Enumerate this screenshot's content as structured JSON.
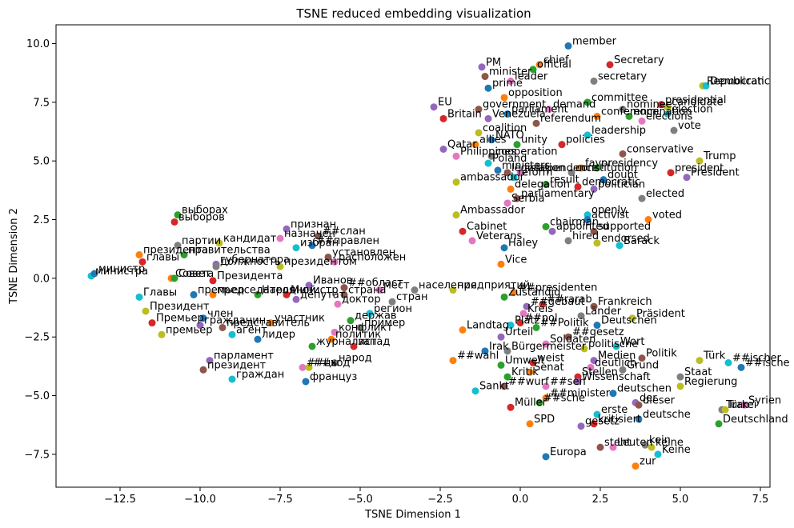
{
  "chart_data": {
    "type": "scatter",
    "title": "TSNE reduced embedding visualization",
    "xlabel": "TSNE Dimension 1",
    "ylabel": "TSNE Dimension 2",
    "xlim": [
      -14.5,
      7.8
    ],
    "ylim": [
      -8.9,
      10.8
    ],
    "xticks": [
      -12.5,
      -10.0,
      -7.5,
      -5.0,
      -2.5,
      0.0,
      2.5,
      5.0,
      7.5
    ],
    "xtick_labels": [
      "−12.5",
      "−10.0",
      "−7.5",
      "−5.0",
      "−2.5",
      "0.0",
      "2.5",
      "5.0",
      "7.5"
    ],
    "yticks": [
      -7.5,
      -5.0,
      -2.5,
      0.0,
      2.5,
      5.0,
      7.5,
      10.0
    ],
    "ytick_labels": [
      "−7.5",
      "−5.0",
      "−2.5",
      "0.0",
      "2.5",
      "5.0",
      "7.5",
      "10.0"
    ],
    "grid": false,
    "legend": "none",
    "palette": [
      "#1f77b4",
      "#ff7f0e",
      "#2ca02c",
      "#d62728",
      "#9467bd",
      "#8c564b",
      "#e377c2",
      "#7f7f7f",
      "#bcbd22",
      "#17becf"
    ],
    "points": [
      {
        "label": "member",
        "x": 1.5,
        "y": 9.9
      },
      {
        "label": "chief",
        "x": 0.6,
        "y": 9.1
      },
      {
        "label": "official",
        "x": 0.4,
        "y": 8.9
      },
      {
        "label": "Secretary",
        "x": 2.8,
        "y": 9.1
      },
      {
        "label": "PM",
        "x": -1.2,
        "y": 9.0
      },
      {
        "label": "minister",
        "x": -1.1,
        "y": 8.6
      },
      {
        "label": "leader",
        "x": -0.3,
        "y": 8.4
      },
      {
        "label": "secretary",
        "x": 2.3,
        "y": 8.4
      },
      {
        "label": "Republican",
        "x": 5.7,
        "y": 8.2
      },
      {
        "label": "Democratic",
        "x": 5.8,
        "y": 8.2
      },
      {
        "label": "prime",
        "x": -1.0,
        "y": 8.1
      },
      {
        "label": "opposition",
        "x": -0.5,
        "y": 7.7
      },
      {
        "label": "committee",
        "x": 2.1,
        "y": 7.5
      },
      {
        "label": "presidential",
        "x": 4.4,
        "y": 7.4
      },
      {
        "label": "EU",
        "x": -2.7,
        "y": 7.3
      },
      {
        "label": "government",
        "x": -1.3,
        "y": 7.2
      },
      {
        "label": "demand",
        "x": 0.9,
        "y": 7.2
      },
      {
        "label": "nominee",
        "x": 3.2,
        "y": 7.2
      },
      {
        "label": "candidate",
        "x": 4.6,
        "y": 7.3
      },
      {
        "label": "election",
        "x": 4.6,
        "y": 7.0
      },
      {
        "label": "parliament",
        "x": -0.4,
        "y": 7.0
      },
      {
        "label": "conference",
        "x": 2.4,
        "y": 6.9
      },
      {
        "label": "nomination",
        "x": 3.4,
        "y": 6.9
      },
      {
        "label": "Britain",
        "x": -2.4,
        "y": 6.8
      },
      {
        "label": "Venezuela",
        "x": -1.0,
        "y": 6.8
      },
      {
        "label": "referendum",
        "x": 0.5,
        "y": 6.6
      },
      {
        "label": "elections",
        "x": 3.8,
        "y": 6.7
      },
      {
        "label": "vote",
        "x": 4.8,
        "y": 6.3
      },
      {
        "label": "coalition",
        "x": -1.3,
        "y": 6.2
      },
      {
        "label": "leadership",
        "x": 2.1,
        "y": 6.1
      },
      {
        "label": "NATO",
        "x": -0.9,
        "y": 5.9
      },
      {
        "label": "allies",
        "x": -1.4,
        "y": 5.7
      },
      {
        "label": "unity",
        "x": -0.1,
        "y": 5.7
      },
      {
        "label": "policies",
        "x": 1.3,
        "y": 5.7
      },
      {
        "label": "Qatar",
        "x": -2.4,
        "y": 5.5
      },
      {
        "label": "conservative",
        "x": 3.2,
        "y": 5.3
      },
      {
        "label": "Philippines",
        "x": -2.0,
        "y": 5.2
      },
      {
        "label": "cooperation",
        "x": -0.9,
        "y": 5.2
      },
      {
        "label": "Trump",
        "x": 5.6,
        "y": 5.0
      },
      {
        "label": "Poland",
        "x": -1.0,
        "y": 4.9
      },
      {
        "label": "ministers",
        "x": -0.7,
        "y": 4.6
      },
      {
        "label": "favor",
        "x": 1.9,
        "y": 4.7
      },
      {
        "label": "presidency",
        "x": 2.4,
        "y": 4.7
      },
      {
        "label": "president",
        "x": 4.7,
        "y": 4.5
      },
      {
        "label": "President",
        "x": 5.2,
        "y": 4.3
      },
      {
        "label": "legislation",
        "x": -0.4,
        "y": 4.5
      },
      {
        "label": "independence",
        "x": 0.0,
        "y": 4.5
      },
      {
        "label": "constitution",
        "x": 1.6,
        "y": 4.5
      },
      {
        "label": "ambassador",
        "x": -2.0,
        "y": 4.1
      },
      {
        "label": "reform",
        "x": -0.2,
        "y": 4.3
      },
      {
        "label": "doubt",
        "x": 2.6,
        "y": 4.2
      },
      {
        "label": "delegation",
        "x": -0.3,
        "y": 3.8
      },
      {
        "label": "result",
        "x": 0.8,
        "y": 4.0
      },
      {
        "label": "democratic",
        "x": 1.8,
        "y": 3.9
      },
      {
        "label": "politician",
        "x": 2.3,
        "y": 3.8
      },
      {
        "label": "parliamentary",
        "x": -0.1,
        "y": 3.4
      },
      {
        "label": "Serbia",
        "x": -0.4,
        "y": 3.2
      },
      {
        "label": "elected",
        "x": 3.8,
        "y": 3.4
      },
      {
        "label": "Ambassador",
        "x": -2.0,
        "y": 2.7
      },
      {
        "label": "openly",
        "x": 2.1,
        "y": 2.7
      },
      {
        "label": "activist",
        "x": 2.1,
        "y": 2.5
      },
      {
        "label": "voted",
        "x": 4.0,
        "y": 2.5
      },
      {
        "label": "chairman",
        "x": 0.8,
        "y": 2.2
      },
      {
        "label": "Cabinet",
        "x": -1.8,
        "y": 2.0
      },
      {
        "label": "appointed",
        "x": 1.0,
        "y": 2.0
      },
      {
        "label": "supported",
        "x": 2.3,
        "y": 2.0
      },
      {
        "label": "Veterans",
        "x": -1.5,
        "y": 1.6
      },
      {
        "label": "hired",
        "x": 1.5,
        "y": 1.6
      },
      {
        "label": "endorsed",
        "x": 2.4,
        "y": 1.5
      },
      {
        "label": "Barack",
        "x": 3.1,
        "y": 1.4
      },
      {
        "label": "Haley",
        "x": -0.5,
        "y": 1.3
      },
      {
        "label": "Vice",
        "x": -0.6,
        "y": 0.6
      },
      {
        "label": "выборах",
        "x": -10.7,
        "y": 2.7
      },
      {
        "label": "выборов",
        "x": -10.8,
        "y": 2.4
      },
      {
        "label": "признан",
        "x": -7.3,
        "y": 2.1
      },
      {
        "label": "##слан",
        "x": -6.3,
        "y": 1.8
      },
      {
        "label": "назначен",
        "x": -7.5,
        "y": 1.7
      },
      {
        "label": "партии",
        "x": -10.7,
        "y": 1.4
      },
      {
        "label": "кандидат",
        "x": -9.4,
        "y": 1.5
      },
      {
        "label": "избран",
        "x": -7.0,
        "y": 1.3
      },
      {
        "label": "##правлен",
        "x": -6.5,
        "y": 1.4
      },
      {
        "label": "президента",
        "x": -11.9,
        "y": 1.0
      },
      {
        "label": "правительства",
        "x": -10.5,
        "y": 1.0
      },
      {
        "label": "главы",
        "x": -11.8,
        "y": 0.7
      },
      {
        "label": "губернатора",
        "x": -9.5,
        "y": 0.6
      },
      {
        "label": "установлен",
        "x": -6.0,
        "y": 0.9
      },
      {
        "label": "расположен",
        "x": -5.8,
        "y": 0.7
      },
      {
        "label": "должность",
        "x": -9.5,
        "y": 0.5
      },
      {
        "label": "президентом",
        "x": -7.5,
        "y": 0.5
      },
      {
        "label": "министра",
        "x": -13.4,
        "y": 0.1
      },
      {
        "label": "министр",
        "x": -13.3,
        "y": 0.2
      },
      {
        "label": "Совета",
        "x": -10.9,
        "y": 0.0
      },
      {
        "label": "Совет",
        "x": -10.8,
        "y": 0.0
      },
      {
        "label": "Президента",
        "x": -9.6,
        "y": -0.1
      },
      {
        "label": "Иванов",
        "x": -6.6,
        "y": -0.3
      },
      {
        "label": "##област",
        "x": -5.5,
        "y": -0.4
      },
      {
        "label": "мест",
        "x": -4.4,
        "y": -0.5
      },
      {
        "label": "населения",
        "x": -3.3,
        "y": -0.5
      },
      {
        "label": "предприятий",
        "x": -2.1,
        "y": -0.5
      },
      {
        "label": "Главы",
        "x": -11.9,
        "y": -0.8
      },
      {
        "label": "премьер",
        "x": -10.2,
        "y": -0.7
      },
      {
        "label": "председателя",
        "x": -9.6,
        "y": -0.7
      },
      {
        "label": "Народной",
        "x": -8.2,
        "y": -0.7
      },
      {
        "label": "Министр",
        "x": -7.3,
        "y": -0.7
      },
      {
        "label": "депутат",
        "x": -7.0,
        "y": -0.9
      },
      {
        "label": "страна",
        "x": -5.5,
        "y": -0.7
      },
      {
        "label": "доктор",
        "x": -5.7,
        "y": -1.1
      },
      {
        "label": "стран",
        "x": -4.0,
        "y": -1.0
      },
      {
        "label": "Президент",
        "x": -11.7,
        "y": -1.4
      },
      {
        "label": "регион",
        "x": -4.7,
        "y": -1.5
      },
      {
        "label": "член",
        "x": -9.9,
        "y": -1.7
      },
      {
        "label": "участник",
        "x": -7.8,
        "y": -1.9
      },
      {
        "label": "держав",
        "x": -5.3,
        "y": -1.8
      },
      {
        "label": "Премьер",
        "x": -11.5,
        "y": -1.9
      },
      {
        "label": "гражданин",
        "x": -10.0,
        "y": -2.0
      },
      {
        "label": "представитель",
        "x": -9.3,
        "y": -2.1
      },
      {
        "label": "конфликт",
        "x": -5.8,
        "y": -2.3
      },
      {
        "label": "пример",
        "x": -5.0,
        "y": -2.1
      },
      {
        "label": "премьер",
        "x": -11.2,
        "y": -2.4
      },
      {
        "label": "агент",
        "x": -9.0,
        "y": -2.4
      },
      {
        "label": "лидер",
        "x": -8.2,
        "y": -2.6
      },
      {
        "label": "политик",
        "x": -5.9,
        "y": -2.6
      },
      {
        "label": "журналист",
        "x": -6.5,
        "y": -2.9
      },
      {
        "label": "запад",
        "x": -5.2,
        "y": -2.9
      },
      {
        "label": "парламент",
        "x": -9.7,
        "y": -3.5
      },
      {
        "label": "президент",
        "x": -9.9,
        "y": -3.9
      },
      {
        "label": "##цы",
        "x": -6.8,
        "y": -3.8
      },
      {
        "label": "народ",
        "x": -5.8,
        "y": -3.6
      },
      {
        "label": "##ход",
        "x": -6.6,
        "y": -3.8
      },
      {
        "label": "граждан",
        "x": -9.0,
        "y": -4.3
      },
      {
        "label": "француз",
        "x": -6.7,
        "y": -4.4
      },
      {
        "label": "##presidenten",
        "x": -0.2,
        "y": -0.6
      },
      {
        "label": "Zuständig",
        "x": -0.5,
        "y": -0.8
      },
      {
        "label": "##rarab",
        "x": 0.7,
        "y": -1.1
      },
      {
        "label": "##gebaut",
        "x": 0.2,
        "y": -1.2
      },
      {
        "label": "Frankreich",
        "x": 2.3,
        "y": -1.2
      },
      {
        "label": "Kreis",
        "x": 0.1,
        "y": -1.5
      },
      {
        "label": "Länder",
        "x": 1.9,
        "y": -1.6
      },
      {
        "label": "Präsident",
        "x": 3.5,
        "y": -1.7
      },
      {
        "label": "Platz",
        "x": -0.3,
        "y": -2.0
      },
      {
        "label": "Deutschen",
        "x": 2.4,
        "y": -2.0
      },
      {
        "label": "Landtag",
        "x": -1.8,
        "y": -2.2
      },
      {
        "label": "##Politik",
        "x": 0.5,
        "y": -2.1
      },
      {
        "label": "##pol",
        "x": 0.0,
        "y": -1.9
      },
      {
        "label": "Urteil",
        "x": -0.6,
        "y": -2.5
      },
      {
        "label": "##gesetz",
        "x": 1.5,
        "y": -2.5
      },
      {
        "label": "Soldaten",
        "x": 0.8,
        "y": -2.8
      },
      {
        "label": "Bürgermeister",
        "x": -0.4,
        "y": -3.1
      },
      {
        "label": "politische",
        "x": 2.0,
        "y": -3.0
      },
      {
        "label": "Wort",
        "x": 3.0,
        "y": -2.9
      },
      {
        "label": "Irak",
        "x": -1.1,
        "y": -3.1
      },
      {
        "label": "##wahl",
        "x": -2.1,
        "y": -3.5
      },
      {
        "label": "Umwelt",
        "x": -0.6,
        "y": -3.7
      },
      {
        "label": "weist",
        "x": 0.4,
        "y": -3.6
      },
      {
        "label": "Medien",
        "x": 2.3,
        "y": -3.5
      },
      {
        "label": "Politik",
        "x": 3.8,
        "y": -3.4
      },
      {
        "label": "deutlich",
        "x": 2.2,
        "y": -3.8
      },
      {
        "label": "Grund",
        "x": 3.2,
        "y": -3.9
      },
      {
        "label": "Türk",
        "x": 5.6,
        "y": -3.5
      },
      {
        "label": "##ischer",
        "x": 6.5,
        "y": -3.6
      },
      {
        "label": "##ische",
        "x": 6.9,
        "y": -3.8
      },
      {
        "label": "Senat",
        "x": 0.3,
        "y": -4.0
      },
      {
        "label": "Kritik",
        "x": -0.4,
        "y": -4.2
      },
      {
        "label": "Stellen",
        "x": 1.8,
        "y": -4.2
      },
      {
        "label": "Wissenschaft",
        "x": 1.8,
        "y": -4.4
      },
      {
        "label": "##wurf",
        "x": -0.5,
        "y": -4.6
      },
      {
        "label": "##sen",
        "x": 0.8,
        "y": -4.6
      },
      {
        "label": "Staat",
        "x": 5.0,
        "y": -4.2
      },
      {
        "label": "Regierung",
        "x": 5.0,
        "y": -4.6
      },
      {
        "label": "Sankt",
        "x": -1.4,
        "y": -4.8
      },
      {
        "label": "deutschen",
        "x": 2.9,
        "y": -4.9
      },
      {
        "label": "##minister",
        "x": 0.8,
        "y": -5.1
      },
      {
        "label": "##sche",
        "x": 0.6,
        "y": -5.3
      },
      {
        "label": "Müller",
        "x": -0.3,
        "y": -5.5
      },
      {
        "label": "der",
        "x": 3.6,
        "y": -5.3
      },
      {
        "label": "dieser",
        "x": 3.7,
        "y": -5.4
      },
      {
        "label": "Syrien",
        "x": 7.0,
        "y": -5.4
      },
      {
        "label": "Türkei",
        "x": 6.3,
        "y": -5.6
      },
      {
        "label": "Iran",
        "x": 6.4,
        "y": -5.6
      },
      {
        "label": "erste",
        "x": 2.4,
        "y": -5.8
      },
      {
        "label": "deutsche",
        "x": 3.7,
        "y": -6.0
      },
      {
        "label": "SPD",
        "x": 0.3,
        "y": -6.2
      },
      {
        "label": "Deutschland",
        "x": 6.2,
        "y": -6.2
      },
      {
        "label": "kritisiert",
        "x": 2.3,
        "y": -6.2
      },
      {
        "label": "gesetz",
        "x": 1.9,
        "y": -6.3
      },
      {
        "label": "steht",
        "x": 2.5,
        "y": -7.2
      },
      {
        "label": "Leuten",
        "x": 2.9,
        "y": -7.2
      },
      {
        "label": "kein",
        "x": 3.9,
        "y": -7.1
      },
      {
        "label": "keine",
        "x": 4.1,
        "y": -7.2
      },
      {
        "label": "Keine",
        "x": 4.3,
        "y": -7.5
      },
      {
        "label": "Europa",
        "x": 0.8,
        "y": -7.6
      },
      {
        "label": "zur",
        "x": 3.6,
        "y": -8.0
      }
    ]
  }
}
